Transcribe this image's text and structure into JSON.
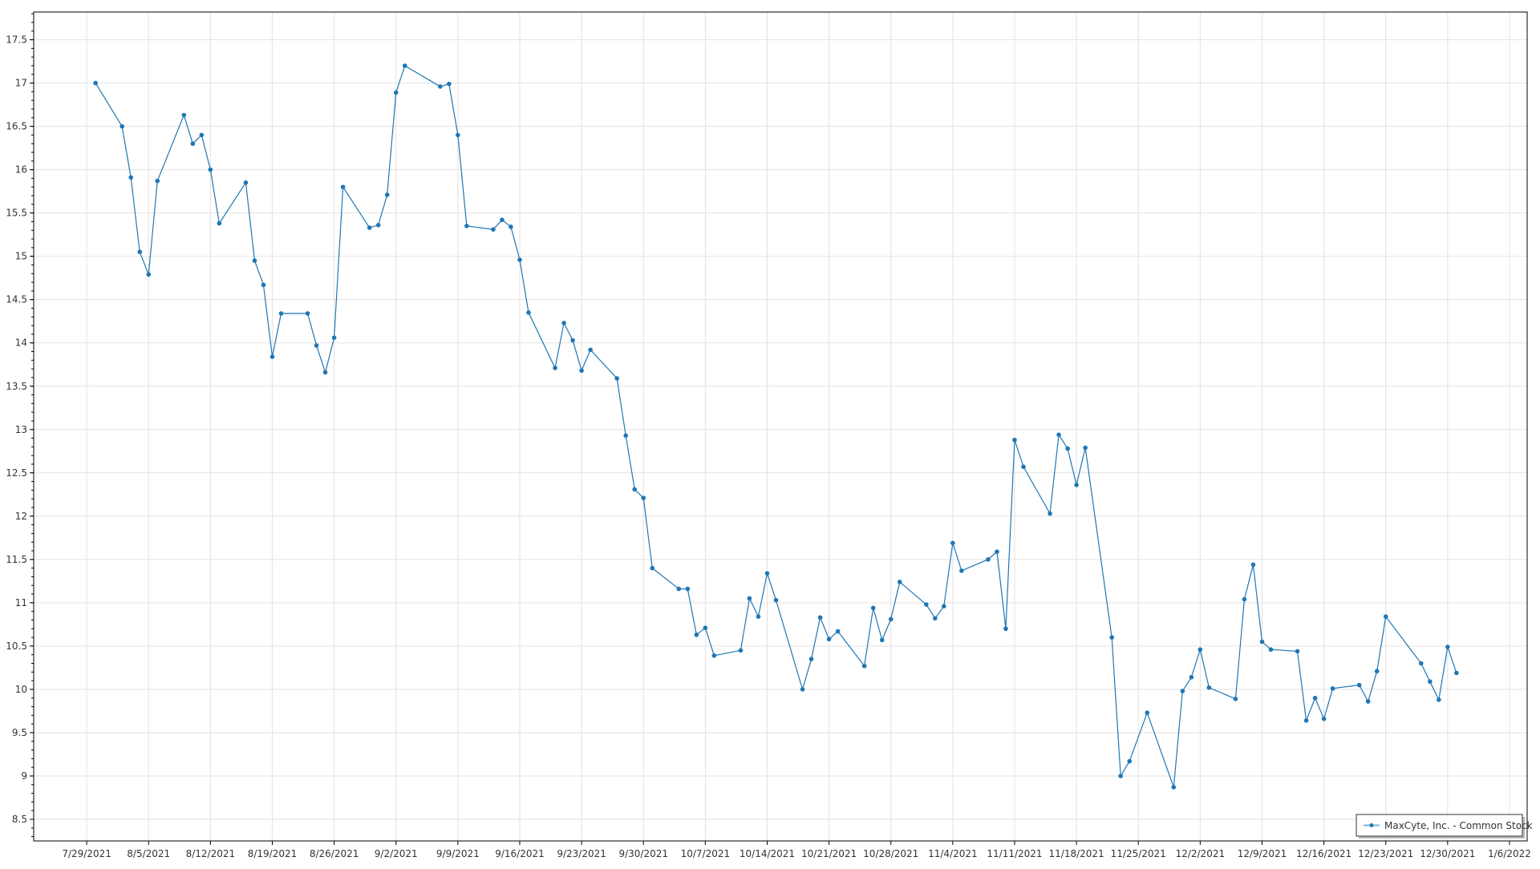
{
  "chart_data": {
    "type": "line",
    "title": "",
    "xlabel": "",
    "ylabel": "",
    "xlim": [
      "2021-07-23",
      "2022-01-08"
    ],
    "ylim": [
      8.25,
      17.82
    ],
    "grid": true,
    "legend_placement": "bottom-right",
    "series_color": "#1f77b4",
    "x_ticks": [
      "7/29/2021",
      "8/5/2021",
      "8/12/2021",
      "8/19/2021",
      "8/26/2021",
      "9/2/2021",
      "9/9/2021",
      "9/16/2021",
      "9/23/2021",
      "9/30/2021",
      "10/7/2021",
      "10/14/2021",
      "10/21/2021",
      "10/28/2021",
      "11/4/2021",
      "11/11/2021",
      "11/18/2021",
      "11/25/2021",
      "12/2/2021",
      "12/9/2021",
      "12/16/2021",
      "12/23/2021",
      "12/30/2021",
      "1/6/2022"
    ],
    "y_ticks": [
      "8.5",
      "9",
      "9.5",
      "10",
      "10.5",
      "11",
      "11.5",
      "12",
      "12.5",
      "13",
      "13.5",
      "14",
      "14.5",
      "15",
      "15.5",
      "16",
      "16.5",
      "17",
      "17.5"
    ],
    "series": [
      {
        "name": "MaxCyte, Inc. - Common Stock",
        "x": [
          "2021-07-30",
          "2021-08-02",
          "2021-08-03",
          "2021-08-04",
          "2021-08-05",
          "2021-08-06",
          "2021-08-09",
          "2021-08-10",
          "2021-08-11",
          "2021-08-12",
          "2021-08-13",
          "2021-08-16",
          "2021-08-17",
          "2021-08-18",
          "2021-08-19",
          "2021-08-20",
          "2021-08-23",
          "2021-08-24",
          "2021-08-25",
          "2021-08-26",
          "2021-08-27",
          "2021-08-30",
          "2021-08-31",
          "2021-09-01",
          "2021-09-02",
          "2021-09-03",
          "2021-09-07",
          "2021-09-08",
          "2021-09-09",
          "2021-09-10",
          "2021-09-13",
          "2021-09-14",
          "2021-09-15",
          "2021-09-16",
          "2021-09-17",
          "2021-09-20",
          "2021-09-21",
          "2021-09-22",
          "2021-09-23",
          "2021-09-24",
          "2021-09-27",
          "2021-09-28",
          "2021-09-29",
          "2021-09-30",
          "2021-10-01",
          "2021-10-04",
          "2021-10-05",
          "2021-10-06",
          "2021-10-07",
          "2021-10-08",
          "2021-10-11",
          "2021-10-12",
          "2021-10-13",
          "2021-10-14",
          "2021-10-15",
          "2021-10-18",
          "2021-10-19",
          "2021-10-20",
          "2021-10-21",
          "2021-10-22",
          "2021-10-25",
          "2021-10-26",
          "2021-10-27",
          "2021-10-28",
          "2021-10-29",
          "2021-11-01",
          "2021-11-02",
          "2021-11-03",
          "2021-11-04",
          "2021-11-05",
          "2021-11-08",
          "2021-11-09",
          "2021-11-10",
          "2021-11-11",
          "2021-11-12",
          "2021-11-15",
          "2021-11-16",
          "2021-11-17",
          "2021-11-18",
          "2021-11-19",
          "2021-11-22",
          "2021-11-23",
          "2021-11-24",
          "2021-11-26",
          "2021-11-29",
          "2021-11-30",
          "2021-12-01",
          "2021-12-02",
          "2021-12-03",
          "2021-12-06",
          "2021-12-07",
          "2021-12-08",
          "2021-12-09",
          "2021-12-10",
          "2021-12-13",
          "2021-12-14",
          "2021-12-15",
          "2021-12-16",
          "2021-12-17",
          "2021-12-20",
          "2021-12-21",
          "2021-12-22",
          "2021-12-23",
          "2021-12-27",
          "2021-12-28",
          "2021-12-29",
          "2021-12-30",
          "2021-12-31"
        ],
        "y": [
          17.0,
          16.5,
          15.91,
          15.05,
          14.79,
          15.87,
          16.63,
          16.3,
          16.4,
          16.0,
          15.38,
          15.85,
          14.95,
          14.67,
          13.84,
          14.34,
          14.34,
          13.97,
          13.66,
          14.06,
          15.8,
          15.33,
          15.36,
          15.71,
          16.89,
          17.2,
          16.96,
          16.99,
          16.4,
          15.35,
          15.31,
          15.42,
          15.34,
          14.96,
          14.35,
          13.71,
          14.23,
          14.03,
          13.68,
          13.92,
          13.59,
          12.93,
          12.31,
          12.21,
          11.4,
          11.16,
          11.16,
          10.63,
          10.71,
          10.39,
          10.45,
          11.05,
          10.84,
          11.34,
          11.03,
          10.0,
          10.35,
          10.83,
          10.58,
          10.67,
          10.27,
          10.94,
          10.57,
          10.81,
          11.24,
          10.98,
          10.82,
          10.96,
          11.69,
          11.37,
          11.5,
          11.59,
          10.7,
          12.88,
          12.57,
          12.03,
          12.94,
          12.78,
          12.36,
          12.79,
          10.6,
          9.0,
          9.17,
          9.73,
          8.87,
          9.98,
          10.14,
          10.46,
          10.02,
          9.89,
          11.04,
          11.44,
          10.55,
          10.46,
          10.44,
          9.64,
          9.9,
          9.66,
          10.01,
          10.05,
          9.86,
          10.21,
          10.84,
          10.3,
          10.09,
          9.88,
          10.49,
          10.19
        ]
      }
    ]
  }
}
